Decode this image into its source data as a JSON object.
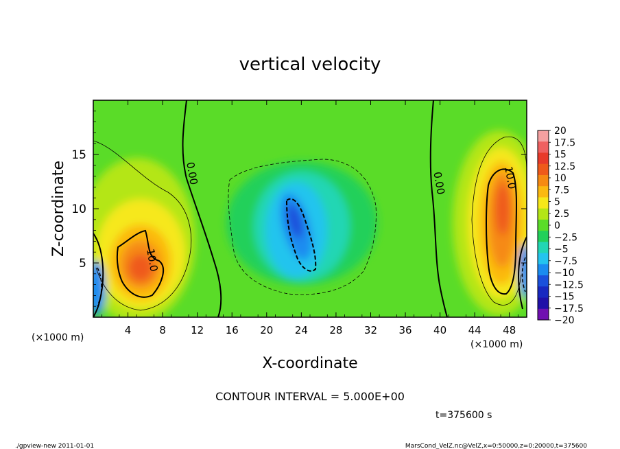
{
  "chart_data": {
    "type": "heatmap",
    "title": "vertical velocity",
    "xlabel": "X-coordinate",
    "ylabel": "Z-coordinate",
    "x_unit_left": "(×1000 m)",
    "x_unit_right": "(×1000 m)",
    "xlim": [
      0,
      50
    ],
    "ylim": [
      0,
      20
    ],
    "x_ticks": [
      4,
      8,
      12,
      16,
      20,
      24,
      28,
      32,
      36,
      40,
      44,
      48
    ],
    "y_ticks": [
      5,
      10,
      15
    ],
    "colorbar": {
      "labels": [
        "20",
        "17.5",
        "15",
        "12.5",
        "10",
        "7.5",
        "5",
        "2.5",
        "0",
        "−2.5",
        "−5",
        "−7.5",
        "−10",
        "−12.5",
        "−15",
        "−17.5",
        "−20"
      ],
      "colors": [
        "#f4a0a0",
        "#ef6060",
        "#e83a2a",
        "#ef5a1a",
        "#f68a12",
        "#fbb910",
        "#f6e81a",
        "#b4e616",
        "#5adc28",
        "#22d05a",
        "#22d6b4",
        "#24c4ee",
        "#1a8cf0",
        "#1a50dc",
        "#1828c0",
        "#2010a8",
        "#7010b0"
      ]
    },
    "contour_labels": [
      {
        "text": "0.00",
        "x": 11,
        "z": 13.2
      },
      {
        "text": "0.00",
        "x": 39.5,
        "z": 12.3
      },
      {
        "text": "10.0",
        "x": 6.4,
        "z": 5.2
      },
      {
        "text": "10.0",
        "x": 47.7,
        "z": 12.8
      }
    ],
    "contour_interval": "CONTOUR INTERVAL = 5.000E+00",
    "time_label": "t=375600 s"
  },
  "footer": {
    "left": "./gpview-new  2011-01-01",
    "right": "MarsCond_VelZ.nc@VelZ,x=0:50000,z=0:20000,t=375600"
  }
}
